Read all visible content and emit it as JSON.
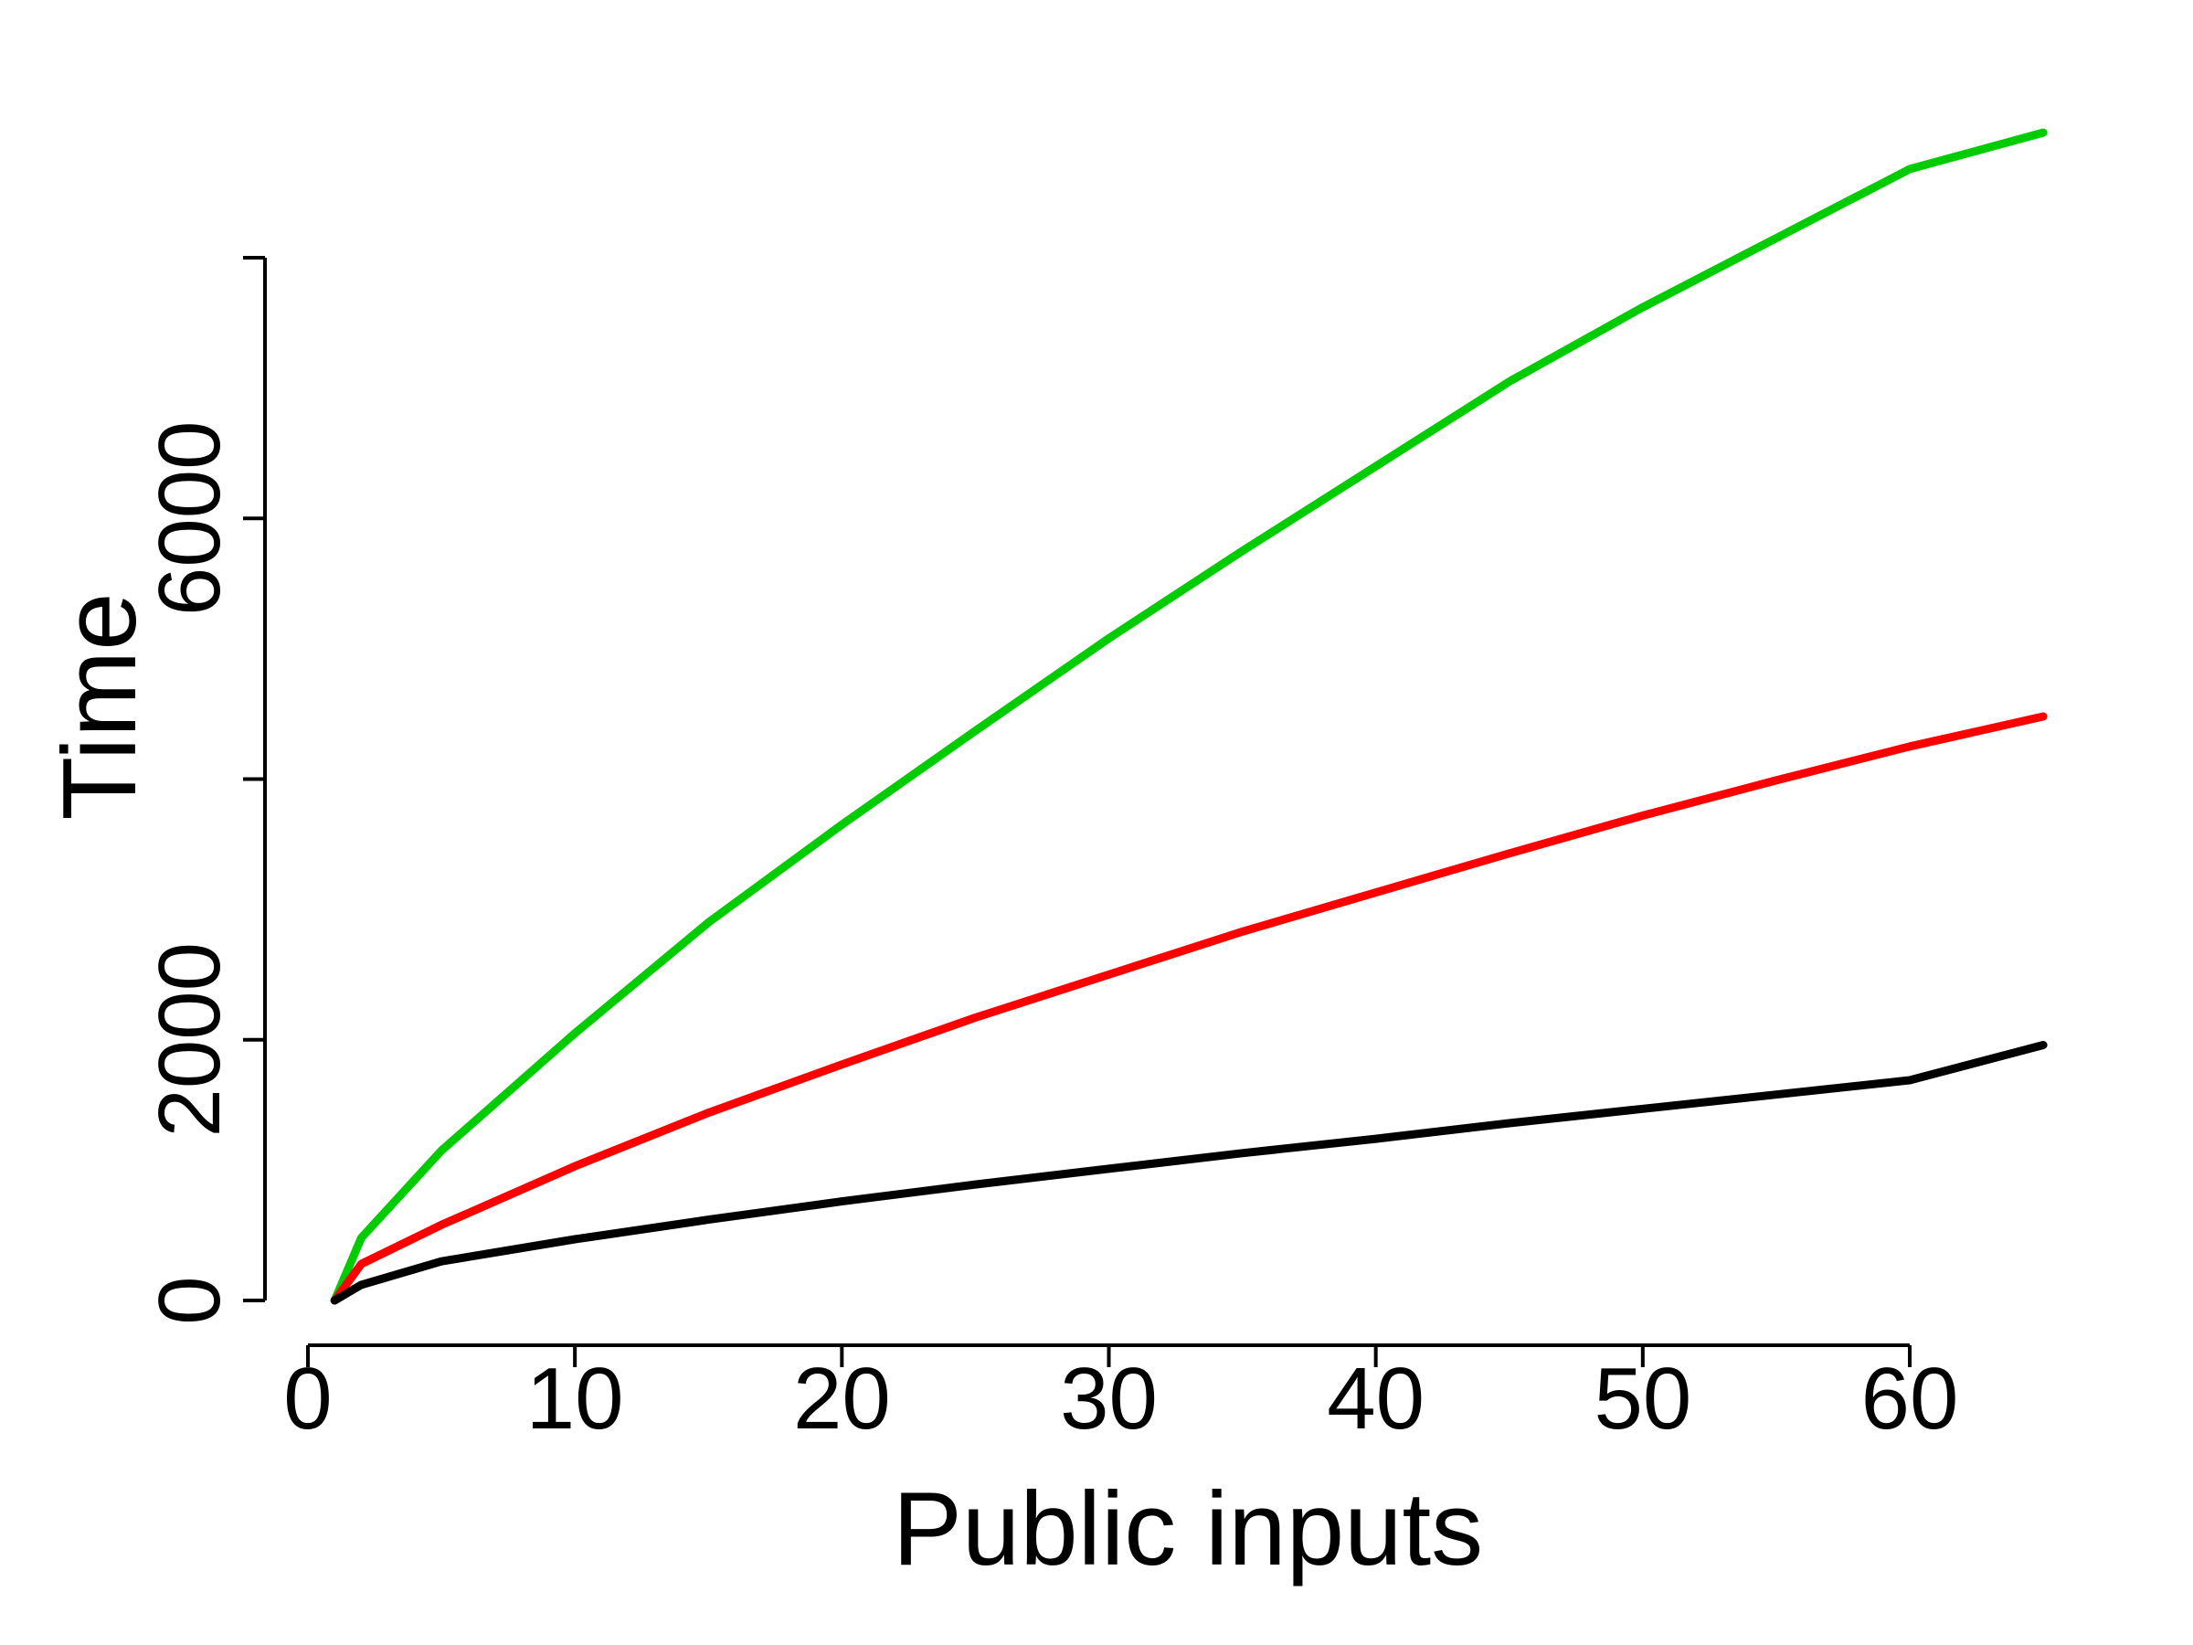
{
  "chart_data": {
    "type": "line",
    "xlabel": "Public inputs",
    "ylabel": "Time",
    "xlim": [
      0,
      60
    ],
    "ylim": [
      0,
      8000
    ],
    "x_ticks": [
      0,
      10,
      20,
      30,
      40,
      50,
      60
    ],
    "y_ticks": [
      0,
      2000,
      4000,
      6000,
      8000
    ],
    "y_tick_labels": [
      "0",
      "2000",
      "",
      "6000",
      ""
    ],
    "grid": false,
    "legend": "none",
    "series": [
      {
        "color": "#00CC00",
        "x": [
          1,
          2,
          5,
          10,
          15,
          20,
          25,
          30,
          35,
          40,
          45,
          50,
          55,
          60,
          65
        ],
        "y": [
          0,
          480,
          1150,
          2050,
          2900,
          3650,
          4370,
          5080,
          5750,
          6400,
          7050,
          7620,
          8150,
          8680,
          8960
        ]
      },
      {
        "color": "#FF0000",
        "x": [
          1,
          2,
          5,
          10,
          15,
          20,
          25,
          30,
          35,
          40,
          45,
          50,
          55,
          60,
          65
        ],
        "y": [
          0,
          280,
          580,
          1030,
          1440,
          1810,
          2170,
          2500,
          2830,
          3130,
          3430,
          3720,
          3990,
          4250,
          4480
        ]
      },
      {
        "color": "#000000",
        "x": [
          1,
          2,
          5,
          10,
          15,
          20,
          25,
          30,
          35,
          40,
          45,
          50,
          55,
          60,
          65
        ],
        "y": [
          0,
          120,
          300,
          470,
          620,
          760,
          890,
          1010,
          1130,
          1240,
          1360,
          1470,
          1580,
          1690,
          1960
        ]
      }
    ]
  }
}
